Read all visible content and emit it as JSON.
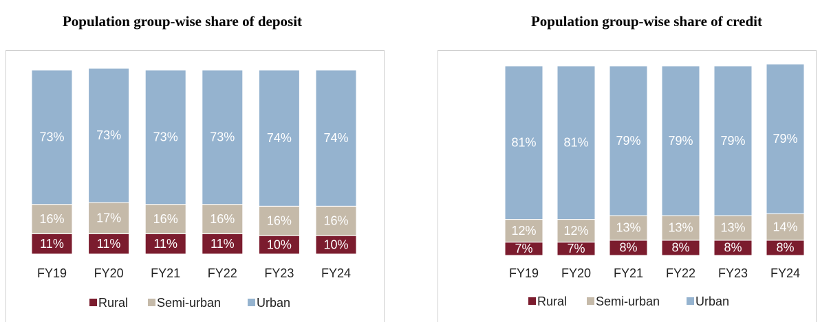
{
  "chart_data": [
    {
      "type": "stacked_bar",
      "title": "Population group-wise share of deposit",
      "categories": [
        "FY19",
        "FY20",
        "FY21",
        "FY22",
        "FY23",
        "FY24"
      ],
      "series": [
        {
          "name": "Rural",
          "color": "#7b1c2e",
          "values": [
            11,
            11,
            11,
            11,
            10,
            10
          ]
        },
        {
          "name": "Semi-urban",
          "color": "#c5baa9",
          "values": [
            16,
            17,
            16,
            16,
            16,
            16
          ]
        },
        {
          "name": "Urban",
          "color": "#95b3cf",
          "values": [
            73,
            73,
            73,
            73,
            74,
            74
          ]
        }
      ],
      "value_labels": [
        [
          "11%",
          "11%",
          "11%",
          "11%",
          "10%",
          "10%"
        ],
        [
          "16%",
          "17%",
          "16%",
          "16%",
          "16%",
          "16%"
        ],
        [
          "73%",
          "73%",
          "73%",
          "73%",
          "74%",
          "74%"
        ]
      ],
      "ylim": [
        0,
        100
      ],
      "legend": "bottom"
    },
    {
      "type": "stacked_bar",
      "title": "Population group-wise share of credit",
      "categories": [
        "FY19",
        "FY20",
        "FY21",
        "FY22",
        "FY23",
        "FY24"
      ],
      "series": [
        {
          "name": "Rural",
          "color": "#7b1c2e",
          "values": [
            7,
            7,
            8,
            8,
            8,
            8
          ]
        },
        {
          "name": "Semi-urban",
          "color": "#c5baa9",
          "values": [
            12,
            12,
            13,
            13,
            13,
            14
          ]
        },
        {
          "name": "Urban",
          "color": "#95b3cf",
          "values": [
            81,
            81,
            79,
            79,
            79,
            79
          ]
        }
      ],
      "value_labels": [
        [
          "7%",
          "7%",
          "8%",
          "8%",
          "8%",
          "8%"
        ],
        [
          "12%",
          "12%",
          "13%",
          "13%",
          "13%",
          "14%"
        ],
        [
          "81%",
          "81%",
          "79%",
          "79%",
          "79%",
          "79%"
        ]
      ],
      "ylim": [
        0,
        100
      ],
      "legend": "bottom"
    }
  ]
}
